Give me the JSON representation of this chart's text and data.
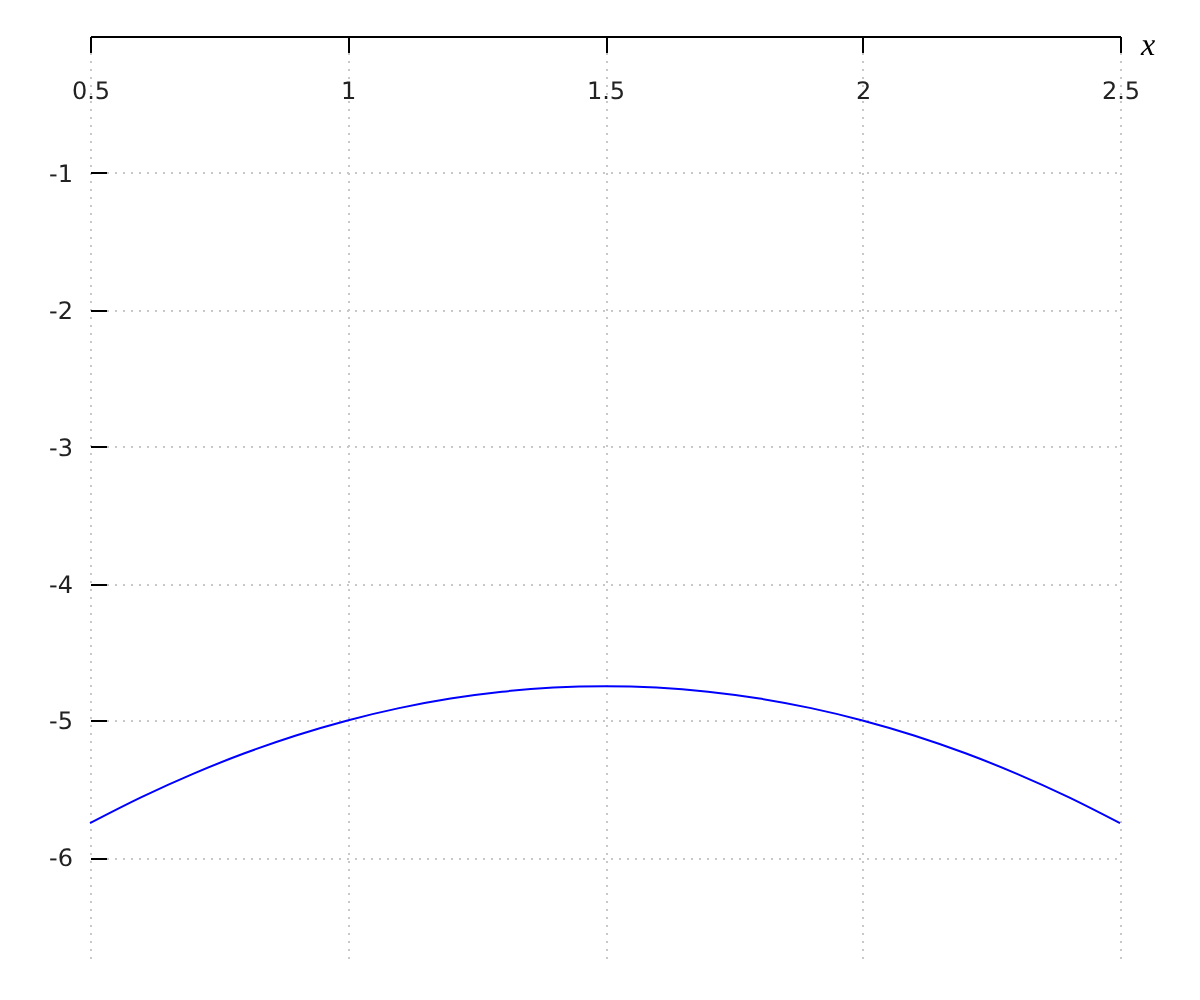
{
  "chart_data": {
    "type": "line",
    "xlabel": "x",
    "x": [
      0.5,
      0.6,
      0.7,
      0.8,
      0.9,
      1.0,
      1.1,
      1.2,
      1.3,
      1.4,
      1.5,
      1.6,
      1.7,
      1.8,
      1.9,
      2.0,
      2.1,
      2.2,
      2.3,
      2.4,
      2.5
    ],
    "series": [
      {
        "color": "#0000ff",
        "values": [
          -5.75,
          -5.56,
          -5.39,
          -5.24,
          -5.11,
          -5.0,
          -4.91,
          -4.84,
          -4.79,
          -4.76,
          -4.75,
          -4.76,
          -4.79,
          -4.84,
          -4.91,
          -5.0,
          -5.11,
          -5.24,
          -5.39,
          -5.56,
          -5.75
        ]
      }
    ],
    "xlim": [
      0.5,
      2.5
    ],
    "ylim": [
      -6.75,
      0
    ],
    "xticks": [
      0.5,
      1,
      1.5,
      2,
      2.5
    ],
    "yticks": [
      -1,
      -2,
      -3,
      -4,
      -5,
      -6
    ],
    "grid": true,
    "line_style": "solid"
  }
}
